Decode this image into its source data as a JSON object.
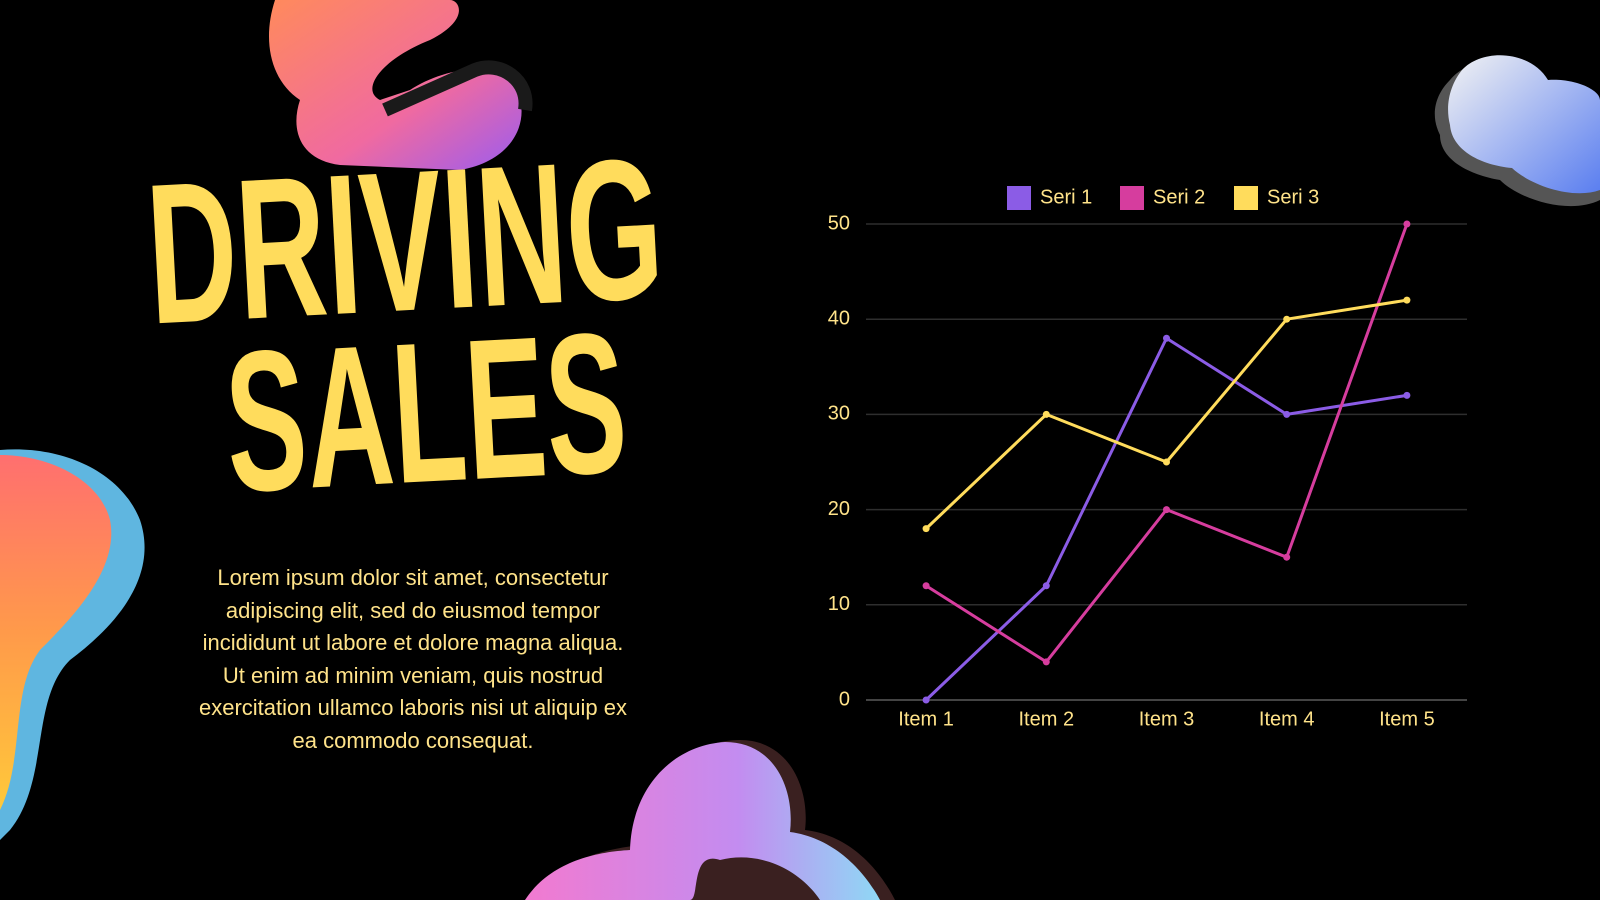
{
  "header": {
    "title_lines": [
      "DRIVING",
      "SALES"
    ]
  },
  "body": {
    "text": "Lorem ipsum dolor sit amet, consectetur adipiscing elit, sed do eiusmod tempor incididunt ut labore et dolore magna aliqua. Ut enim ad minim veniam, quis nostrud exercitation ullamco laboris nisi ut aliquip ex ea commodo consequat."
  },
  "chart_data": {
    "type": "line",
    "categories": [
      "Item 1",
      "Item 2",
      "Item 3",
      "Item 4",
      "Item 5"
    ],
    "series": [
      {
        "name": "Seri 1",
        "color": "#8b5ce6",
        "values": [
          0,
          12,
          38,
          30,
          32
        ]
      },
      {
        "name": "Seri 2",
        "color": "#d63d9e",
        "values": [
          12,
          4,
          20,
          15,
          50
        ]
      },
      {
        "name": "Seri 3",
        "color": "#ffdc5c",
        "values": [
          18,
          30,
          25,
          40,
          42
        ]
      }
    ],
    "ylim": [
      0,
      50
    ],
    "yticks": [
      0,
      10,
      20,
      30,
      40,
      50
    ],
    "grid": true,
    "legend": "top"
  }
}
